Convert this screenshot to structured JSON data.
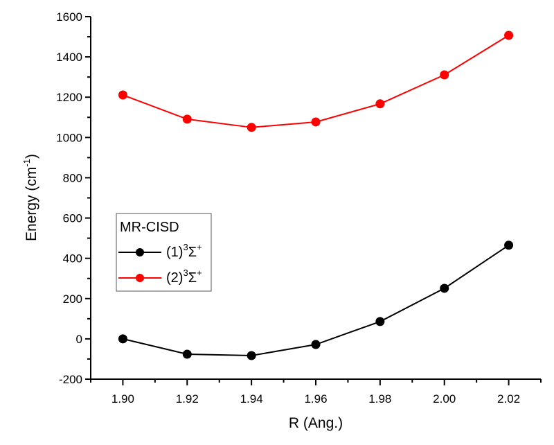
{
  "chart_data": {
    "type": "line",
    "title": "",
    "xlabel": "R (Ang.)",
    "ylabel_main": "Energy (cm",
    "ylabel_sup": "-1",
    "ylabel_close": ")",
    "xlim": [
      1.89,
      2.03
    ],
    "ylim": [
      -200,
      1600
    ],
    "x_ticks": [
      "1.90",
      "1.92",
      "1.94",
      "1.96",
      "1.98",
      "2.00",
      "2.02"
    ],
    "x_tick_values": [
      1.9,
      1.92,
      1.94,
      1.96,
      1.98,
      2.0,
      2.02
    ],
    "x_minor_step": 0.01,
    "y_ticks": [
      "-200",
      "0",
      "200",
      "400",
      "600",
      "800",
      "1000",
      "1200",
      "1400",
      "1600"
    ],
    "y_tick_values": [
      -200,
      0,
      200,
      400,
      600,
      800,
      1000,
      1200,
      1400,
      1600
    ],
    "y_minor_step": 100,
    "grid": false,
    "legend": {
      "title": "MR-CISD",
      "placement": "center-left"
    },
    "x": [
      1.9,
      1.92,
      1.94,
      1.96,
      1.98,
      2.0,
      2.02
    ],
    "series": [
      {
        "name": "(1)3Σ+",
        "label_prefix": "(1)",
        "label_sup1": "3",
        "label_sigma": "Σ",
        "label_sup2": "+",
        "color": "#000000",
        "marker": "circle",
        "values": [
          0,
          -76,
          -83,
          -28,
          86,
          251,
          465
        ]
      },
      {
        "name": "(2)3Σ+",
        "label_prefix": "(2)",
        "label_sup1": "3",
        "label_sigma": "Σ",
        "label_sup2": "+",
        "color": "#ff0000",
        "marker": "circle",
        "values": [
          1211,
          1091,
          1050,
          1077,
          1167,
          1311,
          1507
        ]
      }
    ]
  }
}
